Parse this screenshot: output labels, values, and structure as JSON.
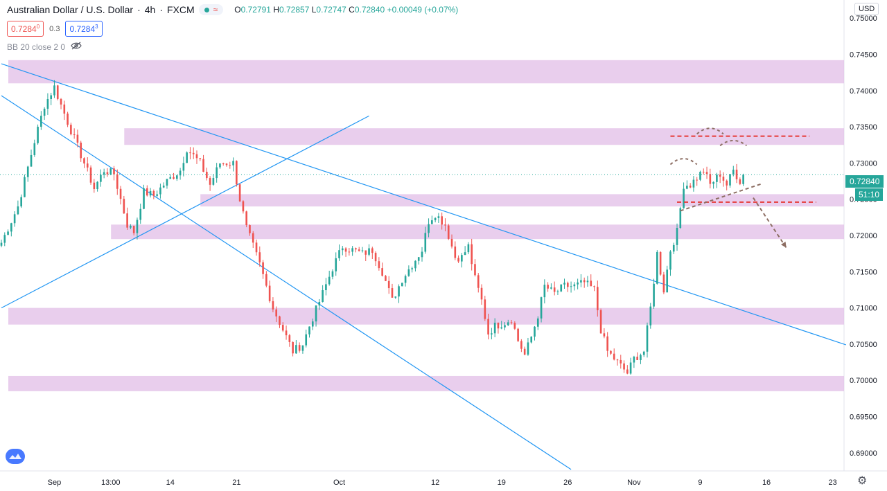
{
  "header": {
    "symbol": "Australian Dollar / U.S. Dollar",
    "interval": "4h",
    "source": "FXCM",
    "ohlc": [
      {
        "label": "O",
        "value": "0.72791"
      },
      {
        "label": "H",
        "value": "0.72857"
      },
      {
        "label": "L",
        "value": "0.72747"
      },
      {
        "label": "C",
        "value": "0.72840"
      }
    ],
    "change": "+0.00049 (+0.07%)"
  },
  "trade": {
    "sell_main": "0.7284",
    "sell_sup": "0",
    "spread": "0.3",
    "buy_main": "0.7284",
    "buy_sup": "3"
  },
  "indicator": {
    "label": "BB 20 close 2 0"
  },
  "currency": "USD",
  "last_price": "0.72840",
  "countdown": "51:10",
  "colors": {
    "up": "#26a69a",
    "down": "#ef5350",
    "trendline": "#2196f3",
    "zone": "#e1bee7",
    "annotation": "#8d6e63",
    "level_dashed": "#e53935"
  },
  "icons": {
    "visibility": "eye-off-icon",
    "wave": "wave-icon",
    "settings": "gear-icon",
    "logo": "tradingview-logo-icon"
  },
  "chart_data": {
    "type": "candlestick",
    "y_axis": {
      "min": 0.6875,
      "max": 0.7525,
      "ticks": [
        "0.75000",
        "0.74500",
        "0.74000",
        "0.73500",
        "0.73000",
        "0.72500",
        "0.72000",
        "0.71500",
        "0.71000",
        "0.70500",
        "0.70000",
        "0.69500",
        "0.69000"
      ]
    },
    "x_axis": {
      "ticks": [
        {
          "label": "Sep",
          "bar": 16
        },
        {
          "label": "13:00",
          "bar": 33
        },
        {
          "label": "14",
          "bar": 51
        },
        {
          "label": "21",
          "bar": 71
        },
        {
          "label": "Oct",
          "bar": 102
        },
        {
          "label": "12",
          "bar": 131
        },
        {
          "label": "19",
          "bar": 151
        },
        {
          "label": "26",
          "bar": 171
        },
        {
          "label": "Nov",
          "bar": 191
        },
        {
          "label": "9",
          "bar": 211
        },
        {
          "label": "16",
          "bar": 231
        },
        {
          "label": "23",
          "bar": 251
        }
      ],
      "bars_total": 255
    },
    "close_anchors": [
      [
        0,
        0.719
      ],
      [
        5,
        0.724
      ],
      [
        10,
        0.733
      ],
      [
        13,
        0.738
      ],
      [
        16,
        0.7405
      ],
      [
        18,
        0.738
      ],
      [
        21,
        0.7345
      ],
      [
        25,
        0.73
      ],
      [
        28,
        0.7265
      ],
      [
        31,
        0.729
      ],
      [
        34,
        0.7285
      ],
      [
        38,
        0.7215
      ],
      [
        40,
        0.7205
      ],
      [
        43,
        0.726
      ],
      [
        46,
        0.7255
      ],
      [
        50,
        0.7275
      ],
      [
        54,
        0.729
      ],
      [
        56,
        0.732
      ],
      [
        60,
        0.73
      ],
      [
        63,
        0.727
      ],
      [
        66,
        0.73
      ],
      [
        70,
        0.73
      ],
      [
        72,
        0.725
      ],
      [
        74,
        0.721
      ],
      [
        78,
        0.716
      ],
      [
        82,
        0.71
      ],
      [
        86,
        0.706
      ],
      [
        88,
        0.704
      ],
      [
        91,
        0.705
      ],
      [
        93,
        0.7075
      ],
      [
        97,
        0.712
      ],
      [
        100,
        0.7155
      ],
      [
        103,
        0.7185
      ],
      [
        106,
        0.718
      ],
      [
        109,
        0.7175
      ],
      [
        112,
        0.718
      ],
      [
        115,
        0.715
      ],
      [
        118,
        0.711
      ],
      [
        121,
        0.714
      ],
      [
        124,
        0.716
      ],
      [
        127,
        0.718
      ],
      [
        129,
        0.722
      ],
      [
        131,
        0.723
      ],
      [
        134,
        0.7215
      ],
      [
        137,
        0.717
      ],
      [
        139,
        0.717
      ],
      [
        141,
        0.7185
      ],
      [
        143,
        0.714
      ],
      [
        145,
        0.711
      ],
      [
        147,
        0.7065
      ],
      [
        149,
        0.7075
      ],
      [
        152,
        0.708
      ],
      [
        154,
        0.7085
      ],
      [
        156,
        0.7055
      ],
      [
        158,
        0.7035
      ],
      [
        160,
        0.706
      ],
      [
        162,
        0.709
      ],
      [
        164,
        0.713
      ],
      [
        167,
        0.712
      ],
      [
        170,
        0.713
      ],
      [
        173,
        0.713
      ],
      [
        176,
        0.7135
      ],
      [
        179,
        0.7125
      ],
      [
        181,
        0.707
      ],
      [
        183,
        0.704
      ],
      [
        186,
        0.7025
      ],
      [
        189,
        0.701
      ],
      [
        191,
        0.703
      ],
      [
        194,
        0.704
      ],
      [
        196,
        0.71
      ],
      [
        198,
        0.7175
      ],
      [
        200,
        0.7125
      ],
      [
        202,
        0.718
      ],
      [
        204,
        0.7205
      ],
      [
        206,
        0.727
      ],
      [
        208,
        0.727
      ],
      [
        210,
        0.728
      ],
      [
        212,
        0.729
      ],
      [
        214,
        0.727
      ],
      [
        217,
        0.7285
      ],
      [
        219,
        0.727
      ],
      [
        221,
        0.729
      ],
      [
        223,
        0.7275
      ],
      [
        224,
        0.7284
      ]
    ],
    "zones": [
      {
        "x0": 0,
        "x1": 255,
        "y0": 0.741,
        "y1": 0.7442
      },
      {
        "x0": 35,
        "x1": 255,
        "y0": 0.7325,
        "y1": 0.7348
      },
      {
        "x0": 58,
        "x1": 255,
        "y0": 0.724,
        "y1": 0.7257
      },
      {
        "x0": 31,
        "x1": 255,
        "y0": 0.7195,
        "y1": 0.7215
      },
      {
        "x0": 0,
        "x1": 255,
        "y0": 0.7077,
        "y1": 0.71
      },
      {
        "x0": 0,
        "x1": 255,
        "y0": 0.6985,
        "y1": 0.7006
      }
    ],
    "trendlines": [
      {
        "x0": 0,
        "y0": 0.7437,
        "x1": 255,
        "y1": 0.7049
      },
      {
        "x0": 0,
        "y0": 0.7393,
        "x1": 172,
        "y1": 0.6877
      },
      {
        "x0": 0,
        "y0": 0.71,
        "x1": 111,
        "y1": 0.7365
      }
    ],
    "dashed_levels": [
      {
        "x0": 202,
        "x1": 244,
        "y": 0.7337
      },
      {
        "x0": 204,
        "x1": 246,
        "y": 0.7246
      }
    ],
    "annotations": {
      "neckline": {
        "x0": 205,
        "y0": 0.7234,
        "x1": 230,
        "y1": 0.7272
      },
      "arrow": {
        "x0": 227,
        "y0": 0.7252,
        "x1": 237,
        "y1": 0.7183
      },
      "arcs": [
        {
          "x0": 202,
          "x1": 210,
          "y": 0.7298,
          "h": 0.0008
        },
        {
          "x0": 210,
          "x1": 218,
          "y": 0.734,
          "h": 0.0008
        },
        {
          "x0": 217,
          "x1": 225,
          "y": 0.7324,
          "h": 0.0007
        }
      ]
    }
  }
}
